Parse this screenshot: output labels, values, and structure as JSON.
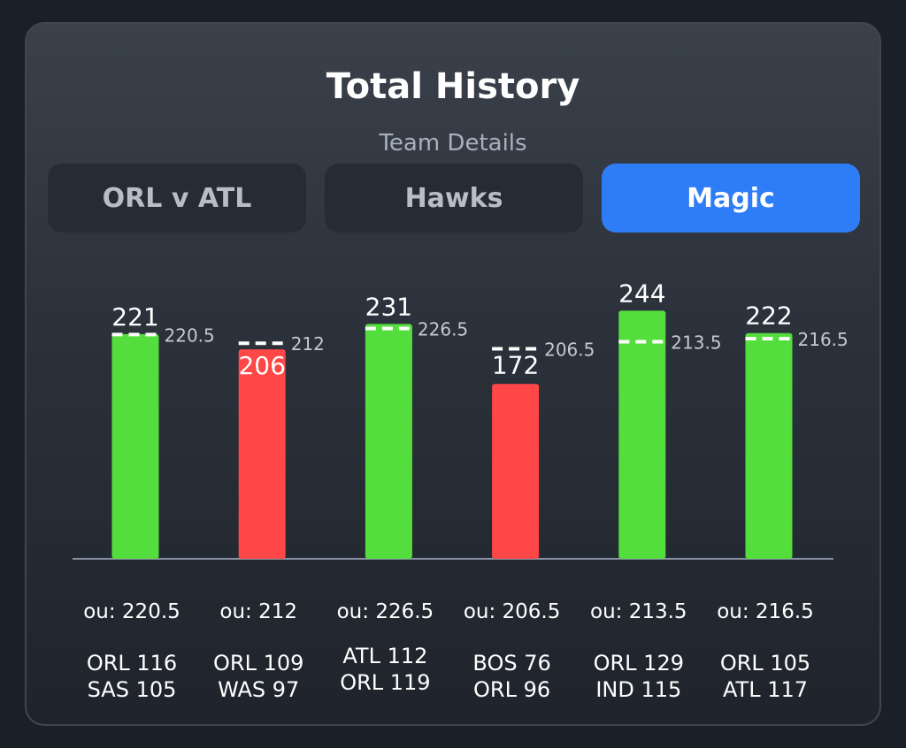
{
  "header": {
    "title": "Total History",
    "subtitle": "Team Details"
  },
  "tabs": [
    {
      "label": "ORL v ATL",
      "active": false
    },
    {
      "label": "Hawks",
      "active": false
    },
    {
      "label": "Magic",
      "active": true
    }
  ],
  "colors": {
    "over": "#54de3e",
    "under": "#ff4747",
    "accent": "#2e7df6",
    "line_marker": "#ffffff"
  },
  "chart_data": {
    "type": "bar",
    "title": "Total History",
    "subtitle": "Team Details",
    "categories": [
      "ORL 116 SAS 105",
      "ORL 109 WAS 97",
      "ATL 112 ORL 119",
      "BOS 76 ORL 96",
      "ORL 129 IND 115",
      "ORL 105 ATL 117"
    ],
    "values": [
      221,
      206,
      231,
      172,
      244,
      222
    ],
    "over_under_lines": [
      220.5,
      212,
      226.5,
      206.5,
      213.5,
      216.5
    ],
    "value_labels": [
      "221",
      "206",
      "231",
      "172",
      "244",
      "222"
    ],
    "line_labels": [
      "220.5",
      "212",
      "226.5",
      "206.5",
      "213.5",
      "216.5"
    ],
    "ou_labels": [
      "ou: 220.5",
      "ou: 212",
      "ou: 226.5",
      "ou: 206.5",
      "ou: 213.5",
      "ou: 216.5"
    ],
    "games": [
      {
        "line1": "ORL 116",
        "line2": "SAS 105"
      },
      {
        "line1": "ORL 109",
        "line2": "WAS 97"
      },
      {
        "line1": "ATL 112",
        "line2": "ORL 119"
      },
      {
        "line1": "BOS 76",
        "line2": "ORL 96"
      },
      {
        "line1": "ORL 129",
        "line2": "IND 115"
      },
      {
        "line1": "ORL 105",
        "line2": "ATL 117"
      }
    ],
    "results": [
      "over",
      "under",
      "over",
      "under",
      "over",
      "over"
    ],
    "grid": false,
    "legend": "none"
  }
}
